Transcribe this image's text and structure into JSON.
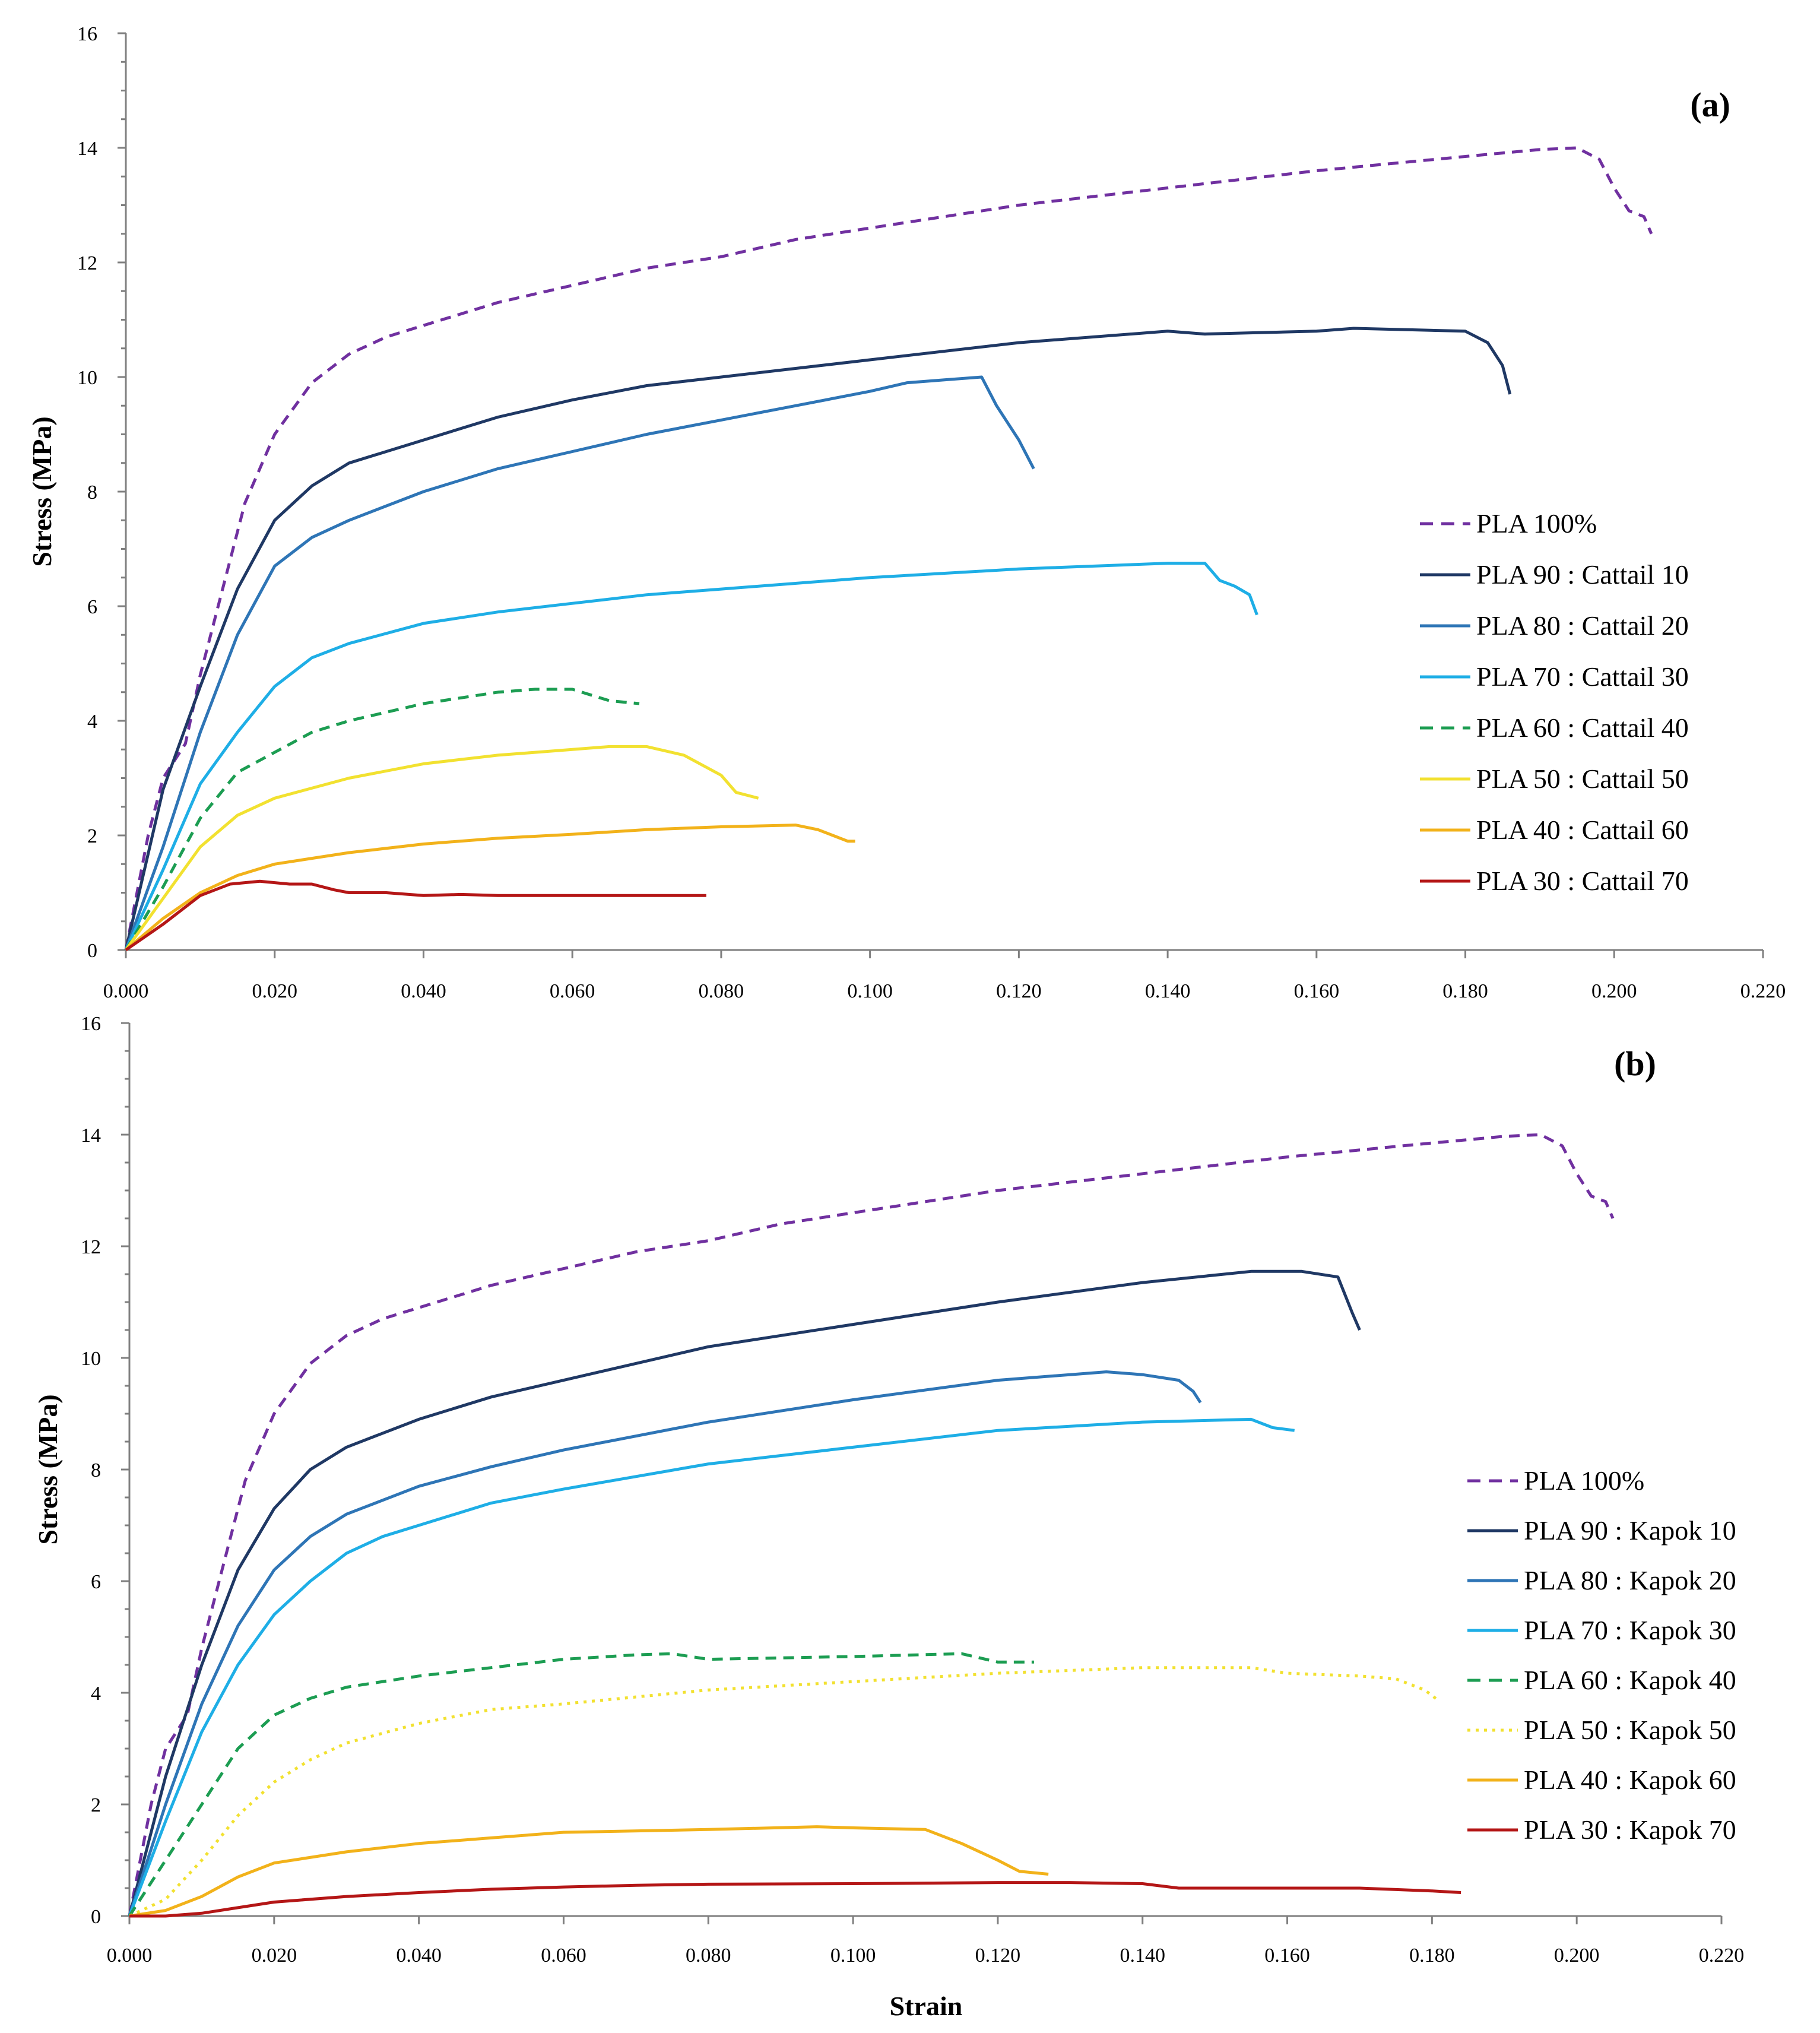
{
  "chart_data": [
    {
      "type": "line",
      "title": "",
      "panel_label": "(a)",
      "xlabel": "",
      "ylabel": "Stress (MPa)",
      "xlim": [
        0,
        0.22
      ],
      "ylim": [
        0,
        16
      ],
      "x_ticks": [
        "0.000",
        "0.020",
        "0.040",
        "0.060",
        "0.080",
        "0.100",
        "0.120",
        "0.140",
        "0.160",
        "0.180",
        "0.200",
        "0.220"
      ],
      "y_ticks": [
        "0",
        "2",
        "4",
        "6",
        "8",
        "10",
        "12",
        "14",
        "16"
      ],
      "legend_position": "right",
      "series": [
        {
          "name": "PLA 100%",
          "color": "#7030a0",
          "style": "dashed",
          "x": [
            0,
            0.003,
            0.005,
            0.008,
            0.01,
            0.013,
            0.016,
            0.02,
            0.025,
            0.03,
            0.035,
            0.04,
            0.05,
            0.06,
            0.07,
            0.08,
            0.09,
            0.1,
            0.12,
            0.14,
            0.16,
            0.18,
            0.19,
            0.195,
            0.198,
            0.2,
            0.202,
            0.204,
            0.205
          ],
          "y": [
            0,
            2.0,
            3.0,
            3.6,
            4.8,
            6.3,
            7.8,
            9.0,
            9.9,
            10.4,
            10.7,
            10.9,
            11.3,
            11.6,
            11.9,
            12.1,
            12.4,
            12.6,
            13.0,
            13.3,
            13.6,
            13.85,
            13.97,
            14.0,
            13.8,
            13.3,
            12.9,
            12.8,
            12.5
          ]
        },
        {
          "name": "PLA 90 : Cattail 10",
          "color": "#1f3864",
          "style": "solid",
          "x": [
            0,
            0.005,
            0.01,
            0.015,
            0.02,
            0.025,
            0.03,
            0.04,
            0.05,
            0.06,
            0.07,
            0.08,
            0.1,
            0.12,
            0.14,
            0.145,
            0.16,
            0.165,
            0.18,
            0.183,
            0.185,
            0.186
          ],
          "y": [
            0,
            2.8,
            4.6,
            6.3,
            7.5,
            8.1,
            8.5,
            8.9,
            9.3,
            9.6,
            9.85,
            10.0,
            10.3,
            10.6,
            10.8,
            10.75,
            10.8,
            10.85,
            10.8,
            10.6,
            10.2,
            9.7
          ]
        },
        {
          "name": "PLA 80 : Cattail 20",
          "color": "#2e75b6",
          "style": "solid",
          "x": [
            0,
            0.005,
            0.01,
            0.015,
            0.02,
            0.025,
            0.03,
            0.04,
            0.05,
            0.06,
            0.07,
            0.08,
            0.09,
            0.1,
            0.105,
            0.11,
            0.115,
            0.117,
            0.12,
            0.122
          ],
          "y": [
            0,
            1.8,
            3.8,
            5.5,
            6.7,
            7.2,
            7.5,
            8.0,
            8.4,
            8.7,
            9.0,
            9.25,
            9.5,
            9.75,
            9.9,
            9.95,
            10.0,
            9.5,
            8.9,
            8.4
          ]
        },
        {
          "name": "PLA 70 : Cattail 30",
          "color": "#1eaee6",
          "style": "solid",
          "x": [
            0,
            0.005,
            0.01,
            0.015,
            0.02,
            0.025,
            0.03,
            0.04,
            0.05,
            0.06,
            0.07,
            0.08,
            0.1,
            0.12,
            0.14,
            0.145,
            0.147,
            0.149,
            0.151,
            0.152
          ],
          "y": [
            0,
            1.4,
            2.9,
            3.8,
            4.6,
            5.1,
            5.35,
            5.7,
            5.9,
            6.05,
            6.2,
            6.3,
            6.5,
            6.65,
            6.75,
            6.75,
            6.45,
            6.35,
            6.2,
            5.85
          ]
        },
        {
          "name": "PLA 60 : Cattail 40",
          "color": "#1c9d52",
          "style": "dashed",
          "x": [
            0,
            0.005,
            0.01,
            0.015,
            0.02,
            0.025,
            0.03,
            0.04,
            0.05,
            0.055,
            0.06,
            0.065,
            0.069
          ],
          "y": [
            0,
            1.1,
            2.3,
            3.1,
            3.45,
            3.8,
            4.0,
            4.3,
            4.5,
            4.55,
            4.55,
            4.35,
            4.3
          ]
        },
        {
          "name": "PLA 50 : Cattail 50",
          "color": "#f2e130",
          "style": "solid",
          "x": [
            0,
            0.005,
            0.01,
            0.015,
            0.02,
            0.03,
            0.04,
            0.05,
            0.055,
            0.06,
            0.065,
            0.07,
            0.075,
            0.08,
            0.082,
            0.085
          ],
          "y": [
            0,
            0.9,
            1.8,
            2.35,
            2.65,
            3.0,
            3.25,
            3.4,
            3.45,
            3.5,
            3.55,
            3.55,
            3.4,
            3.05,
            2.75,
            2.65
          ]
        },
        {
          "name": "PLA 40 : Cattail 60",
          "color": "#f2b21a",
          "style": "solid",
          "x": [
            0,
            0.005,
            0.01,
            0.015,
            0.02,
            0.03,
            0.04,
            0.05,
            0.06,
            0.07,
            0.08,
            0.09,
            0.093,
            0.095,
            0.097,
            0.098
          ],
          "y": [
            0,
            0.55,
            1.0,
            1.3,
            1.5,
            1.7,
            1.85,
            1.95,
            2.02,
            2.1,
            2.15,
            2.18,
            2.1,
            2.0,
            1.9,
            1.9
          ]
        },
        {
          "name": "PLA 30 : Cattail 70",
          "color": "#b41616",
          "style": "solid",
          "x": [
            0,
            0.005,
            0.01,
            0.014,
            0.018,
            0.022,
            0.025,
            0.028,
            0.03,
            0.035,
            0.04,
            0.045,
            0.05,
            0.06,
            0.07,
            0.078
          ],
          "y": [
            0,
            0.45,
            0.95,
            1.15,
            1.2,
            1.15,
            1.15,
            1.05,
            1.0,
            1.0,
            0.95,
            0.97,
            0.95,
            0.95,
            0.95,
            0.95
          ]
        }
      ]
    },
    {
      "type": "line",
      "title": "",
      "panel_label": "(b)",
      "xlabel": "Strain",
      "ylabel": "Stress (MPa)",
      "xlim": [
        0,
        0.22
      ],
      "ylim": [
        0,
        16
      ],
      "x_ticks": [
        "0.000",
        "0.020",
        "0.040",
        "0.060",
        "0.080",
        "0.100",
        "0.120",
        "0.140",
        "0.160",
        "0.180",
        "0.200",
        "0.220"
      ],
      "y_ticks": [
        "0",
        "2",
        "4",
        "6",
        "8",
        "10",
        "12",
        "14",
        "16"
      ],
      "legend_position": "right",
      "series": [
        {
          "name": "PLA 100%",
          "color": "#7030a0",
          "style": "dashed",
          "x": [
            0,
            0.003,
            0.005,
            0.008,
            0.01,
            0.013,
            0.016,
            0.02,
            0.025,
            0.03,
            0.035,
            0.04,
            0.05,
            0.06,
            0.07,
            0.08,
            0.09,
            0.1,
            0.12,
            0.14,
            0.16,
            0.18,
            0.19,
            0.195,
            0.198,
            0.2,
            0.202,
            0.204,
            0.205
          ],
          "y": [
            0,
            2.0,
            3.0,
            3.6,
            4.8,
            6.3,
            7.8,
            9.0,
            9.9,
            10.4,
            10.7,
            10.9,
            11.3,
            11.6,
            11.9,
            12.1,
            12.4,
            12.6,
            13.0,
            13.3,
            13.6,
            13.85,
            13.97,
            14.0,
            13.8,
            13.3,
            12.9,
            12.8,
            12.5
          ]
        },
        {
          "name": "PLA 90 : Kapok 10",
          "color": "#1f3864",
          "style": "solid",
          "x": [
            0,
            0.005,
            0.01,
            0.015,
            0.02,
            0.025,
            0.03,
            0.04,
            0.05,
            0.06,
            0.08,
            0.1,
            0.12,
            0.14,
            0.155,
            0.162,
            0.167,
            0.169,
            0.17
          ],
          "y": [
            0,
            2.5,
            4.5,
            6.2,
            7.3,
            8.0,
            8.4,
            8.9,
            9.3,
            9.6,
            10.2,
            10.6,
            11.0,
            11.35,
            11.55,
            11.55,
            11.45,
            10.8,
            10.5
          ]
        },
        {
          "name": "PLA 80 : Kapok 20",
          "color": "#2e75b6",
          "style": "solid",
          "x": [
            0,
            0.005,
            0.01,
            0.015,
            0.02,
            0.025,
            0.03,
            0.04,
            0.05,
            0.06,
            0.08,
            0.1,
            0.12,
            0.135,
            0.14,
            0.145,
            0.147,
            0.148
          ],
          "y": [
            0,
            2.0,
            3.8,
            5.2,
            6.2,
            6.8,
            7.2,
            7.7,
            8.05,
            8.35,
            8.85,
            9.25,
            9.6,
            9.75,
            9.7,
            9.6,
            9.4,
            9.2
          ]
        },
        {
          "name": "PLA 70 : Kapok 30",
          "color": "#1eaee6",
          "style": "solid",
          "x": [
            0,
            0.005,
            0.01,
            0.015,
            0.02,
            0.025,
            0.03,
            0.035,
            0.04,
            0.05,
            0.06,
            0.08,
            0.1,
            0.12,
            0.14,
            0.155,
            0.158,
            0.161
          ],
          "y": [
            0,
            1.7,
            3.3,
            4.5,
            5.4,
            6.0,
            6.5,
            6.8,
            7.0,
            7.4,
            7.65,
            8.1,
            8.4,
            8.7,
            8.85,
            8.9,
            8.75,
            8.7
          ]
        },
        {
          "name": "PLA 60 : Kapok 40",
          "color": "#1c9d52",
          "style": "dashed",
          "x": [
            0,
            0.005,
            0.01,
            0.015,
            0.02,
            0.025,
            0.03,
            0.04,
            0.05,
            0.06,
            0.07,
            0.075,
            0.08,
            0.1,
            0.115,
            0.12,
            0.125
          ],
          "y": [
            0,
            1.0,
            2.0,
            3.0,
            3.6,
            3.9,
            4.1,
            4.3,
            4.45,
            4.6,
            4.68,
            4.7,
            4.6,
            4.65,
            4.7,
            4.55,
            4.55
          ]
        },
        {
          "name": "PLA 50 : Kapok 50",
          "color": "#f2e130",
          "style": "dotted",
          "x": [
            0,
            0.005,
            0.01,
            0.015,
            0.02,
            0.025,
            0.03,
            0.04,
            0.05,
            0.06,
            0.08,
            0.1,
            0.12,
            0.14,
            0.155,
            0.16,
            0.17,
            0.175,
            0.179,
            0.181
          ],
          "y": [
            0,
            0.3,
            1.0,
            1.8,
            2.4,
            2.8,
            3.1,
            3.45,
            3.7,
            3.8,
            4.05,
            4.2,
            4.35,
            4.45,
            4.45,
            4.35,
            4.3,
            4.25,
            4.05,
            3.85
          ]
        },
        {
          "name": "PLA 40 : Kapok 60",
          "color": "#f2b21a",
          "style": "solid",
          "x": [
            0,
            0.005,
            0.01,
            0.015,
            0.02,
            0.03,
            0.04,
            0.05,
            0.06,
            0.08,
            0.095,
            0.1,
            0.11,
            0.115,
            0.12,
            0.123,
            0.127
          ],
          "y": [
            0,
            0.1,
            0.35,
            0.7,
            0.95,
            1.15,
            1.3,
            1.4,
            1.5,
            1.55,
            1.6,
            1.58,
            1.55,
            1.3,
            1.0,
            0.8,
            0.75
          ]
        },
        {
          "name": "PLA 30 : Kapok 70",
          "color": "#b41616",
          "style": "solid",
          "x": [
            0,
            0.005,
            0.01,
            0.015,
            0.02,
            0.03,
            0.04,
            0.05,
            0.06,
            0.07,
            0.08,
            0.1,
            0.12,
            0.13,
            0.14,
            0.145,
            0.16,
            0.17,
            0.18,
            0.184
          ],
          "y": [
            0,
            0.0,
            0.05,
            0.15,
            0.25,
            0.35,
            0.42,
            0.48,
            0.52,
            0.55,
            0.57,
            0.58,
            0.6,
            0.6,
            0.58,
            0.5,
            0.5,
            0.5,
            0.45,
            0.42
          ]
        }
      ]
    }
  ]
}
